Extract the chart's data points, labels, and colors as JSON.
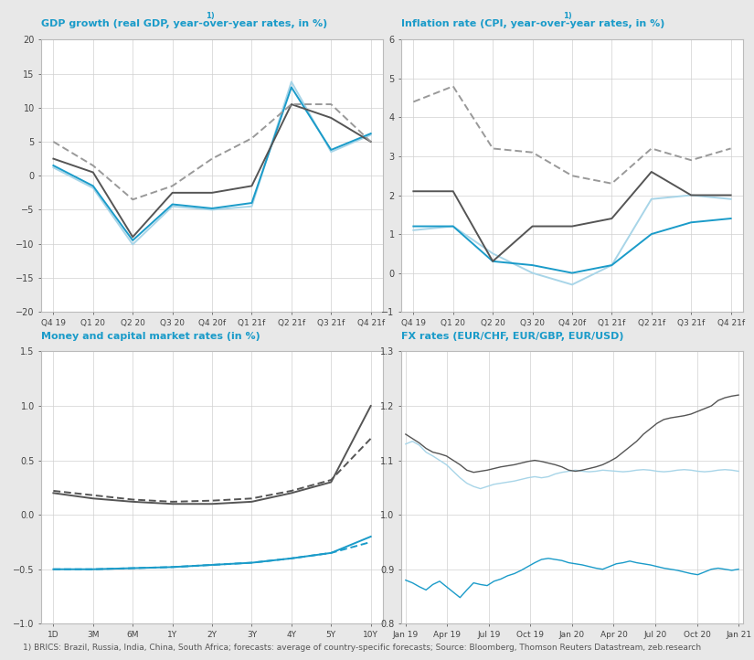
{
  "bg_color": "#e8e8e8",
  "panel_bg": "#ffffff",
  "title_color": "#1a9bc9",
  "grid_color": "#d0d0d0",
  "footer_text": "1) BRICS: Brazil, Russia, India, China, South Africa; forecasts: average of country-specific forecasts; Source: Bloomberg, Thomson Reuters Datastream, zeb.research",
  "gdp": {
    "title": "GDP growth (real GDP, year-over-year rates, in %)¹⁽",
    "title_plain": "GDP growth (real GDP, year-over-year rates, in %)",
    "title_super": "1)",
    "xlabels": [
      "Q4 19",
      "Q1 20",
      "Q2 20",
      "Q3 20",
      "Q4 20f",
      "Q1 21f",
      "Q2 21f",
      "Q3 21f",
      "Q4 21f"
    ],
    "ylim": [
      -20.0,
      20.0
    ],
    "yticks": [
      -20.0,
      -15.0,
      -10.0,
      -5.0,
      0.0,
      5.0,
      10.0,
      15.0,
      20.0
    ],
    "germany": [
      1.2,
      -1.8,
      -10.1,
      -4.5,
      -5.0,
      -4.5,
      13.8,
      3.5,
      6.0
    ],
    "western_europe": [
      1.5,
      -1.5,
      -9.5,
      -4.2,
      -4.8,
      -4.0,
      13.0,
      3.8,
      6.2
    ],
    "united_states": [
      2.5,
      0.5,
      -9.0,
      -2.5,
      -2.5,
      -1.5,
      10.5,
      8.5,
      5.0
    ],
    "brics": [
      5.0,
      1.5,
      -3.5,
      -1.5,
      2.5,
      5.5,
      10.5,
      10.5,
      5.0
    ],
    "color_germany": "#a8d5e8",
    "color_we": "#1a9bc9",
    "color_us": "#555555",
    "color_brics": "#999999"
  },
  "inflation": {
    "title_plain": "Inflation rate (CPI, year-over-year rates, in %)",
    "title_super": "1)",
    "xlabels": [
      "Q4 19",
      "Q1 20",
      "Q2 20",
      "Q3 20",
      "Q4 20f",
      "Q1 21f",
      "Q2 21f",
      "Q3 21f",
      "Q4 21f"
    ],
    "ylim": [
      -1.0,
      6.0
    ],
    "yticks": [
      -1.0,
      0.0,
      1.0,
      2.0,
      3.0,
      4.0,
      5.0,
      6.0
    ],
    "germany": [
      1.1,
      1.2,
      0.5,
      0.0,
      -0.3,
      0.2,
      1.9,
      2.0,
      1.9
    ],
    "western_europe": [
      1.2,
      1.2,
      0.3,
      0.2,
      0.0,
      0.2,
      1.0,
      1.3,
      1.4
    ],
    "united_states": [
      2.1,
      2.1,
      0.3,
      1.2,
      1.2,
      1.4,
      2.6,
      2.0,
      2.0
    ],
    "brics": [
      4.4,
      4.8,
      3.2,
      3.1,
      2.5,
      2.3,
      3.2,
      2.9,
      3.2
    ],
    "color_germany": "#a8d5e8",
    "color_we": "#1a9bc9",
    "color_us": "#555555",
    "color_brics": "#999999"
  },
  "money": {
    "title_plain": "Money and capital market rates (in %)",
    "xlabels": [
      "1D",
      "3M",
      "6M",
      "1Y",
      "2Y",
      "3Y",
      "4Y",
      "5Y",
      "10Y"
    ],
    "ylim": [
      -1.0,
      1.5
    ],
    "yticks": [
      -1.0,
      -0.5,
      0.0,
      0.5,
      1.0,
      1.5
    ],
    "euribor_dec": [
      0.2,
      0.15,
      0.12,
      0.1,
      0.1,
      0.12,
      0.2,
      0.3,
      1.0
    ],
    "euribor_sep": [
      0.22,
      0.18,
      0.14,
      0.12,
      0.13,
      0.15,
      0.22,
      0.32,
      0.7
    ],
    "usdlibor_dec": [
      -0.5,
      -0.5,
      -0.49,
      -0.48,
      -0.46,
      -0.44,
      -0.4,
      -0.35,
      -0.2
    ],
    "usdlibor_sep": [
      -0.5,
      -0.5,
      -0.49,
      -0.48,
      -0.46,
      -0.44,
      -0.4,
      -0.35,
      -0.25
    ],
    "color_euribor_dec": "#555555",
    "color_euribor_sep": "#555555",
    "color_usd_dec": "#1a9bc9",
    "color_usd_sep": "#1a9bc9"
  },
  "fx": {
    "title_plain": "FX rates (EUR/CHF, EUR/GBP, EUR/USD)",
    "xlabels": [
      "Jan 19",
      "Apr 19",
      "Jul 19",
      "Oct 19",
      "Jan 20",
      "Apr 20",
      "Jul 20",
      "Oct 20",
      "Jan 21"
    ],
    "ylim": [
      0.8,
      1.3
    ],
    "yticks": [
      0.8,
      0.9,
      1.0,
      1.1,
      1.2,
      1.3
    ],
    "eur_chf": [
      1.13,
      1.135,
      1.128,
      1.115,
      1.108,
      1.1,
      1.092,
      1.08,
      1.068,
      1.058,
      1.052,
      1.048,
      1.052,
      1.056,
      1.058,
      1.06,
      1.062,
      1.065,
      1.068,
      1.07,
      1.068,
      1.07,
      1.075,
      1.078,
      1.08,
      1.082,
      1.08,
      1.079,
      1.08,
      1.082,
      1.081,
      1.08,
      1.079,
      1.08,
      1.082,
      1.083,
      1.082,
      1.08,
      1.079,
      1.08,
      1.082,
      1.083,
      1.082,
      1.08,
      1.079,
      1.08,
      1.082,
      1.083,
      1.082,
      1.08
    ],
    "eur_gbp": [
      0.88,
      0.875,
      0.868,
      0.862,
      0.872,
      0.878,
      0.868,
      0.858,
      0.848,
      0.862,
      0.875,
      0.872,
      0.87,
      0.878,
      0.882,
      0.888,
      0.892,
      0.898,
      0.905,
      0.912,
      0.918,
      0.92,
      0.918,
      0.916,
      0.912,
      0.91,
      0.908,
      0.905,
      0.902,
      0.9,
      0.905,
      0.91,
      0.912,
      0.915,
      0.912,
      0.91,
      0.908,
      0.905,
      0.902,
      0.9,
      0.898,
      0.895,
      0.892,
      0.89,
      0.895,
      0.9,
      0.902,
      0.9,
      0.898,
      0.9
    ],
    "eur_usd": [
      1.148,
      1.14,
      1.132,
      1.122,
      1.115,
      1.112,
      1.108,
      1.1,
      1.092,
      1.082,
      1.078,
      1.08,
      1.082,
      1.085,
      1.088,
      1.09,
      1.092,
      1.095,
      1.098,
      1.1,
      1.098,
      1.095,
      1.092,
      1.088,
      1.082,
      1.08,
      1.082,
      1.085,
      1.088,
      1.092,
      1.098,
      1.105,
      1.115,
      1.125,
      1.135,
      1.148,
      1.158,
      1.168,
      1.175,
      1.178,
      1.18,
      1.182,
      1.185,
      1.19,
      1.195,
      1.2,
      1.21,
      1.215,
      1.218,
      1.22
    ],
    "color_chf": "#a8d5e8",
    "color_gbp": "#1a9bc9",
    "color_usd": "#555555"
  }
}
